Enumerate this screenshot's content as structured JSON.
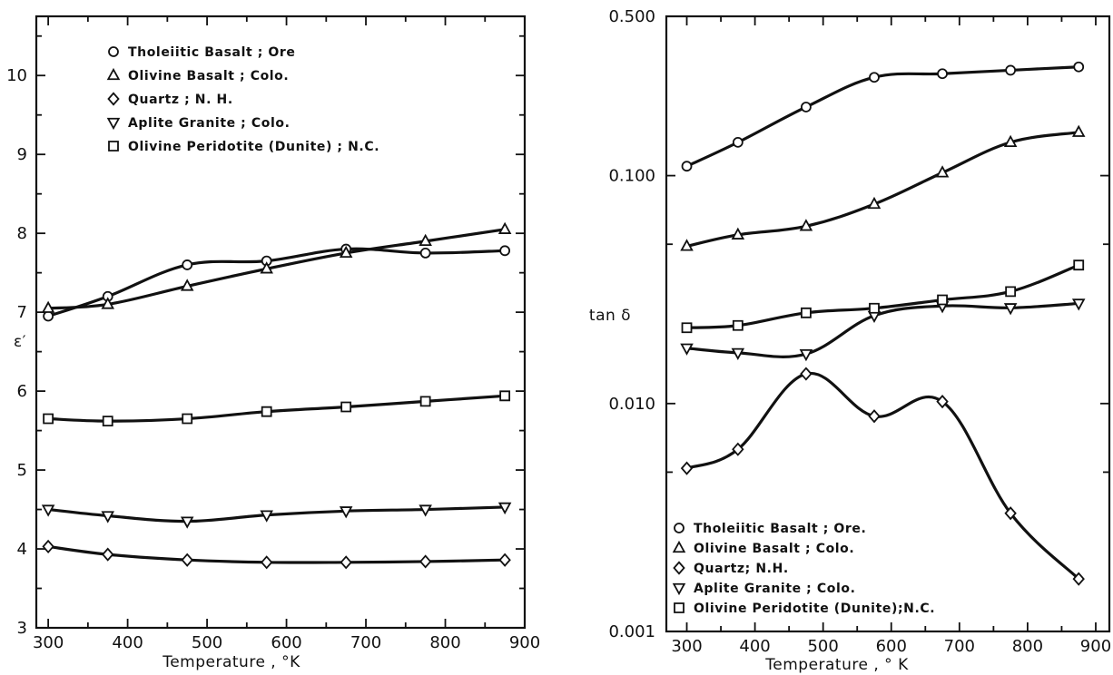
{
  "chart_data": [
    {
      "type": "line",
      "xlabel": "Temperature , °K",
      "ylabel": "ε′",
      "xlim": [
        285,
        900
      ],
      "ylim": [
        3,
        10.75
      ],
      "x_ticks": [
        300,
        400,
        500,
        600,
        700,
        800,
        900
      ],
      "y_ticks": [
        3,
        4,
        5,
        6,
        7,
        8,
        9,
        10
      ],
      "y_scale": "linear",
      "legend_position": "top-left",
      "x": [
        300,
        375,
        475,
        575,
        675,
        775,
        875
      ],
      "series": [
        {
          "name": "Tholeiitic Basalt ; Ore",
          "marker": "circle",
          "values": [
            6.95,
            7.2,
            7.6,
            7.65,
            7.8,
            7.75,
            7.78
          ]
        },
        {
          "name": "Olivine Basalt ; Colo.",
          "marker": "triangle-up",
          "values": [
            7.05,
            7.1,
            7.33,
            7.55,
            7.75,
            7.9,
            8.05
          ]
        },
        {
          "name": "Quartz ; N. H.",
          "marker": "diamond",
          "values": [
            4.03,
            3.93,
            3.86,
            3.83,
            3.83,
            3.84,
            3.86
          ]
        },
        {
          "name": "Aplite Granite ; Colo.",
          "marker": "triangle-down",
          "values": [
            4.5,
            4.42,
            4.35,
            4.43,
            4.48,
            4.5,
            4.53
          ]
        },
        {
          "name": "Olivine Peridotite (Dunite) ; N.C.",
          "marker": "square",
          "values": [
            5.65,
            5.62,
            5.65,
            5.74,
            5.8,
            5.87,
            5.94
          ]
        }
      ]
    },
    {
      "type": "line",
      "xlabel": "Temperature , ° K",
      "ylabel": "tan δ",
      "xlim": [
        270,
        920
      ],
      "ylim": [
        0.001,
        0.5
      ],
      "x_ticks": [
        300,
        400,
        500,
        600,
        700,
        800,
        900
      ],
      "y_ticks": [
        0.001,
        0.01,
        0.1,
        0.5
      ],
      "y_tick_labels": [
        "0.001",
        "0.010",
        "0.100",
        "0.500"
      ],
      "y_scale": "log",
      "legend_position": "bottom-left",
      "x": [
        300,
        375,
        475,
        575,
        675,
        775,
        875
      ],
      "series": [
        {
          "name": "Tholeiitic Basalt ; Ore.",
          "marker": "circle",
          "values": [
            0.11,
            0.14,
            0.2,
            0.27,
            0.28,
            0.29,
            0.3
          ]
        },
        {
          "name": "Olivine Basalt ; Colo.",
          "marker": "triangle-up",
          "values": [
            0.049,
            0.055,
            0.06,
            0.075,
            0.103,
            0.14,
            0.155
          ]
        },
        {
          "name": "Quartz; N.H.",
          "marker": "diamond",
          "values": [
            0.0052,
            0.0063,
            0.0135,
            0.0088,
            0.0102,
            0.0033,
            0.0017
          ]
        },
        {
          "name": "Aplite Granite ; Colo.",
          "marker": "triangle-down",
          "values": [
            0.0175,
            0.0167,
            0.0165,
            0.0243,
            0.0268,
            0.0263,
            0.0275
          ]
        },
        {
          "name": "Olivine Peridotite (Dunite);N.C.",
          "marker": "square",
          "values": [
            0.0215,
            0.022,
            0.025,
            0.0262,
            0.0285,
            0.031,
            0.0405
          ]
        }
      ]
    }
  ]
}
